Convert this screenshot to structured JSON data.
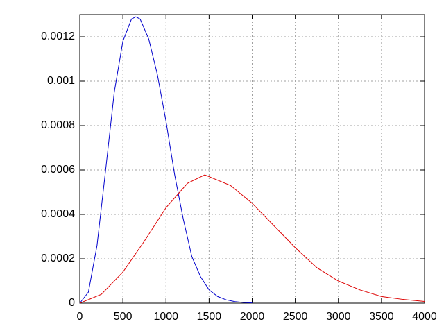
{
  "chart_data": {
    "type": "line",
    "xlim": [
      0,
      4000
    ],
    "xticks": [
      0,
      500,
      1000,
      1500,
      2000,
      2500,
      3000,
      3500,
      4000
    ],
    "ylim": [
      0,
      0.0013
    ],
    "yticks": [
      0,
      0.0002,
      0.0004,
      0.0006,
      0.0008,
      0.001,
      0.0012
    ],
    "grid": true,
    "series": [
      {
        "color": "#0000cc",
        "x": [
          0,
          100,
          200,
          300,
          400,
          500,
          600,
          650,
          700,
          800,
          900,
          1000,
          1100,
          1200,
          1300,
          1400,
          1500,
          1600,
          1700,
          1800,
          1900,
          2000
        ],
        "values": [
          0,
          5e-05,
          0.00026,
          0.0006,
          0.00095,
          0.00118,
          0.00128,
          0.00129,
          0.00128,
          0.00119,
          0.00103,
          0.00082,
          0.00058,
          0.00038,
          0.00021,
          0.00012,
          6e-05,
          3e-05,
          1.5e-05,
          7e-06,
          3e-06,
          1e-06
        ]
      },
      {
        "color": "#dd0000",
        "x": [
          0,
          250,
          500,
          750,
          1000,
          1250,
          1450,
          1750,
          2000,
          2250,
          2500,
          2750,
          3000,
          3250,
          3500,
          3750,
          4000
        ],
        "values": [
          0,
          4e-05,
          0.00014,
          0.00028,
          0.00043,
          0.00054,
          0.000578,
          0.00053,
          0.00045,
          0.00035,
          0.00025,
          0.00016,
          0.0001,
          6e-05,
          3e-05,
          1.7e-05,
          8e-06
        ]
      }
    ]
  }
}
